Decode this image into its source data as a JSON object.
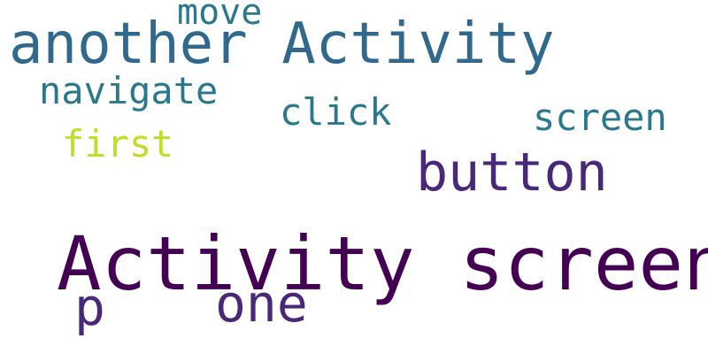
{
  "background": "#ffffff",
  "words": [
    {
      "text": "Activity screen",
      "color": "#440154"
    },
    {
      "text": "another Activity",
      "color": "#31688e"
    },
    {
      "text": "button",
      "color": "#482878"
    },
    {
      "text": "p",
      "color": "#482878"
    },
    {
      "text": "one",
      "color": "#482878"
    },
    {
      "text": "navigate",
      "color": "#2a788e"
    },
    {
      "text": "screen",
      "color": "#2a788e"
    },
    {
      "text": "click",
      "color": "#2a788e"
    },
    {
      "text": "move",
      "color": "#2a788e"
    },
    {
      "text": "first",
      "color": "#bddf26"
    }
  ]
}
